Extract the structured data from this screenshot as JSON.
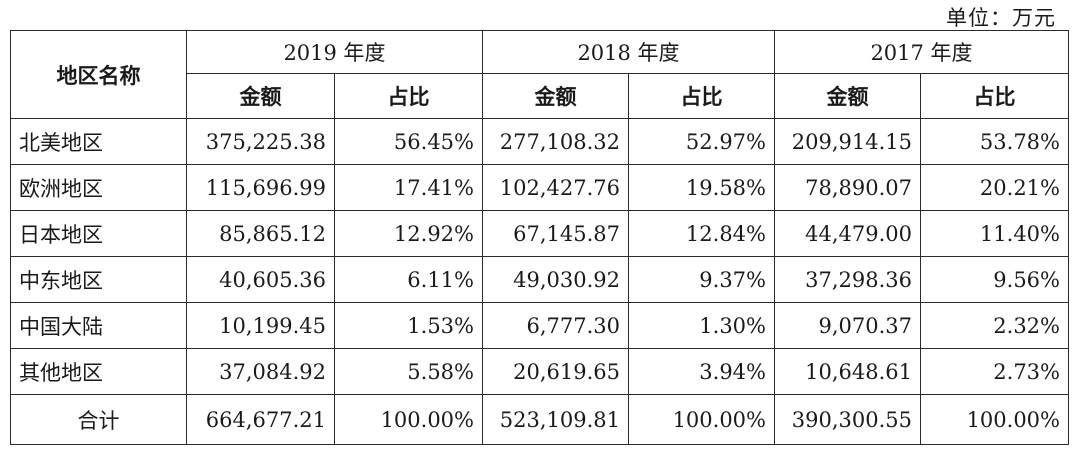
{
  "unit_label": "单位：万元",
  "header": {
    "region_label": "地区名称",
    "years": [
      "2019 年度",
      "2018 年度",
      "2017 年度"
    ],
    "amount_label": "金额",
    "ratio_label": "占比"
  },
  "rows": [
    {
      "region": "北美地区",
      "y2019_amount": "375,225.38",
      "y2019_ratio": "56.45%",
      "y2018_amount": "277,108.32",
      "y2018_ratio": "52.97%",
      "y2017_amount": "209,914.15",
      "y2017_ratio": "53.78%"
    },
    {
      "region": "欧洲地区",
      "y2019_amount": "115,696.99",
      "y2019_ratio": "17.41%",
      "y2018_amount": "102,427.76",
      "y2018_ratio": "19.58%",
      "y2017_amount": "78,890.07",
      "y2017_ratio": "20.21%"
    },
    {
      "region": "日本地区",
      "y2019_amount": "85,865.12",
      "y2019_ratio": "12.92%",
      "y2018_amount": "67,145.87",
      "y2018_ratio": "12.84%",
      "y2017_amount": "44,479.00",
      "y2017_ratio": "11.40%"
    },
    {
      "region": "中东地区",
      "y2019_amount": "40,605.36",
      "y2019_ratio": "6.11%",
      "y2018_amount": "49,030.92",
      "y2018_ratio": "9.37%",
      "y2017_amount": "37,298.36",
      "y2017_ratio": "9.56%"
    },
    {
      "region": "中国大陆",
      "y2019_amount": "10,199.45",
      "y2019_ratio": "1.53%",
      "y2018_amount": "6,777.30",
      "y2018_ratio": "1.30%",
      "y2017_amount": "9,070.37",
      "y2017_ratio": "2.32%"
    },
    {
      "region": "其他地区",
      "y2019_amount": "37,084.92",
      "y2019_ratio": "5.58%",
      "y2018_amount": "20,619.65",
      "y2018_ratio": "3.94%",
      "y2017_amount": "10,648.61",
      "y2017_ratio": "2.73%"
    }
  ],
  "total": {
    "label": "合计",
    "y2019_amount": "664,677.21",
    "y2019_ratio": "100.00%",
    "y2018_amount": "523,109.81",
    "y2018_ratio": "100.00%",
    "y2017_amount": "390,300.55",
    "y2017_ratio": "100.00%"
  }
}
